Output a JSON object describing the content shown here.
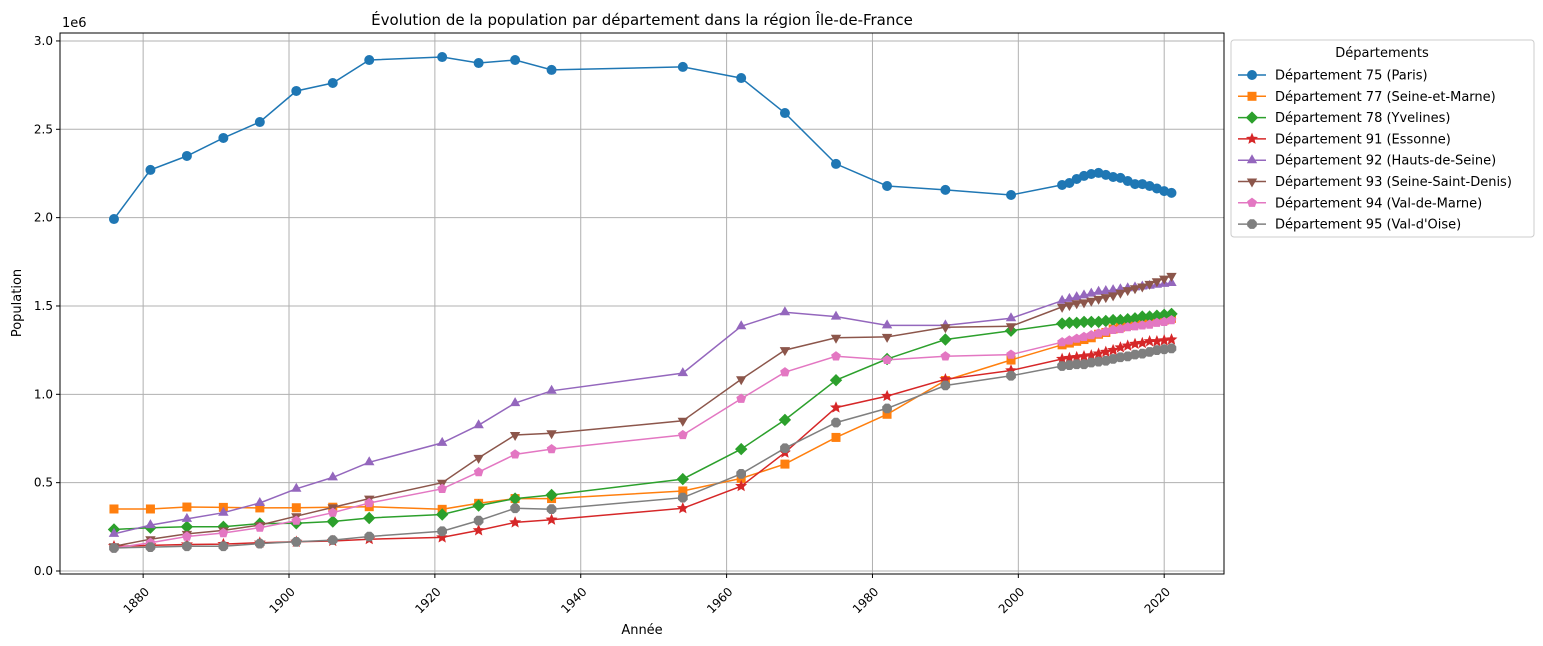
{
  "chart_data": {
    "type": "line",
    "title": "Évolution de la population par département dans la région Île-de-France",
    "xlabel": "Année",
    "ylabel": "Population",
    "y_offset_label": "1e6",
    "xlim": [
      1868.6,
      2028.2
    ],
    "ylim": [
      -17000,
      3045000
    ],
    "grid": true,
    "x_ticks": [
      1880,
      1900,
      1920,
      1940,
      1960,
      1980,
      2000,
      2020
    ],
    "y_ticks": [
      0,
      500000,
      1000000,
      1500000,
      2000000,
      2500000,
      3000000
    ],
    "y_tick_labels": [
      "0.0",
      "0.5",
      "1.0",
      "1.5",
      "2.0",
      "2.5",
      "3.0"
    ],
    "legend_title": "Départements",
    "legend_position": "outside-right-top",
    "x": [
      1876,
      1881,
      1886,
      1891,
      1896,
      1901,
      1906,
      1911,
      1921,
      1926,
      1931,
      1936,
      1954,
      1962,
      1968,
      1975,
      1982,
      1990,
      1999,
      2006,
      2007,
      2008,
      2009,
      2010,
      2011,
      2012,
      2013,
      2014,
      2015,
      2016,
      2017,
      2018,
      2019,
      2020,
      2021
    ],
    "series": [
      {
        "name": "Département 75 (Paris)",
        "color": "#1f77b4",
        "marker": "circle",
        "values": [
          1992000,
          2270000,
          2349000,
          2451000,
          2541000,
          2717000,
          2762000,
          2892000,
          2909000,
          2875000,
          2892000,
          2836000,
          2853000,
          2790000,
          2592000,
          2304000,
          2179000,
          2157000,
          2128000,
          2185000,
          2196000,
          2219000,
          2236000,
          2247000,
          2253000,
          2242000,
          2230000,
          2225000,
          2207000,
          2190000,
          2190000,
          2179000,
          2165000,
          2150000,
          2140000
        ]
      },
      {
        "name": "Département 77 (Seine-et-Marne)",
        "color": "#ff7f0e",
        "marker": "square",
        "values": [
          351000,
          351000,
          362000,
          360000,
          357000,
          358000,
          361000,
          364000,
          349000,
          383000,
          410000,
          410000,
          453000,
          524000,
          605000,
          756000,
          887000,
          1078000,
          1194000,
          1280000,
          1290000,
          1300000,
          1310000,
          1320000,
          1340000,
          1350000,
          1370000,
          1380000,
          1390000,
          1400000,
          1410000,
          1410000,
          1420000,
          1420000,
          1430000
        ]
      },
      {
        "name": "Département 78 (Yvelines)",
        "color": "#2ca02c",
        "marker": "diamond",
        "values": [
          235000,
          245000,
          250000,
          250000,
          268000,
          270000,
          280000,
          300000,
          320000,
          370000,
          410000,
          430000,
          520000,
          690000,
          855000,
          1080000,
          1200000,
          1310000,
          1360000,
          1400000,
          1405000,
          1405000,
          1410000,
          1410000,
          1410000,
          1415000,
          1420000,
          1420000,
          1425000,
          1430000,
          1440000,
          1440000,
          1445000,
          1450000,
          1455000
        ]
      },
      {
        "name": "Département 91 (Essonne)",
        "color": "#d62728",
        "marker": "star",
        "values": [
          140000,
          145000,
          150000,
          152000,
          160000,
          165000,
          170000,
          180000,
          190000,
          230000,
          275000,
          290000,
          355000,
          480000,
          670000,
          925000,
          990000,
          1085000,
          1135000,
          1200000,
          1205000,
          1210000,
          1215000,
          1220000,
          1230000,
          1240000,
          1250000,
          1265000,
          1275000,
          1285000,
          1290000,
          1300000,
          1300000,
          1305000,
          1310000
        ]
      },
      {
        "name": "Département 92 (Hauts-de-Seine)",
        "color": "#9467bd",
        "marker": "triangle-up",
        "values": [
          210000,
          260000,
          295000,
          330000,
          385000,
          465000,
          530000,
          615000,
          725000,
          825000,
          950000,
          1020000,
          1120000,
          1385000,
          1465000,
          1440000,
          1390000,
          1390000,
          1430000,
          1530000,
          1540000,
          1550000,
          1560000,
          1570000,
          1580000,
          1585000,
          1590000,
          1595000,
          1600000,
          1605000,
          1610000,
          1615000,
          1620000,
          1625000,
          1630000
        ]
      },
      {
        "name": "Département 93 (Seine-Saint-Denis)",
        "color": "#8c564b",
        "marker": "triangle-down",
        "values": [
          140000,
          180000,
          210000,
          230000,
          260000,
          310000,
          360000,
          410000,
          500000,
          640000,
          770000,
          780000,
          850000,
          1085000,
          1250000,
          1320000,
          1325000,
          1380000,
          1385000,
          1495000,
          1505000,
          1515000,
          1520000,
          1530000,
          1540000,
          1550000,
          1560000,
          1575000,
          1590000,
          1600000,
          1610000,
          1625000,
          1640000,
          1655000,
          1670000
        ]
      },
      {
        "name": "Département 94 (Val-de-Marne)",
        "color": "#e377c2",
        "marker": "pentagon",
        "values": [
          130000,
          160000,
          195000,
          215000,
          245000,
          285000,
          330000,
          385000,
          465000,
          560000,
          660000,
          690000,
          770000,
          975000,
          1125000,
          1215000,
          1195000,
          1215000,
          1225000,
          1295000,
          1305000,
          1315000,
          1325000,
          1335000,
          1345000,
          1355000,
          1365000,
          1370000,
          1380000,
          1385000,
          1390000,
          1395000,
          1405000,
          1410000,
          1420000
        ]
      },
      {
        "name": "Département 95 (Val-d'Oise)",
        "color": "#7f7f7f",
        "marker": "octagon",
        "values": [
          130000,
          135000,
          140000,
          140000,
          155000,
          165000,
          175000,
          195000,
          225000,
          285000,
          355000,
          350000,
          415000,
          550000,
          695000,
          840000,
          920000,
          1050000,
          1105000,
          1160000,
          1165000,
          1170000,
          1170000,
          1180000,
          1185000,
          1190000,
          1200000,
          1210000,
          1215000,
          1225000,
          1230000,
          1240000,
          1250000,
          1255000,
          1260000
        ]
      }
    ]
  }
}
